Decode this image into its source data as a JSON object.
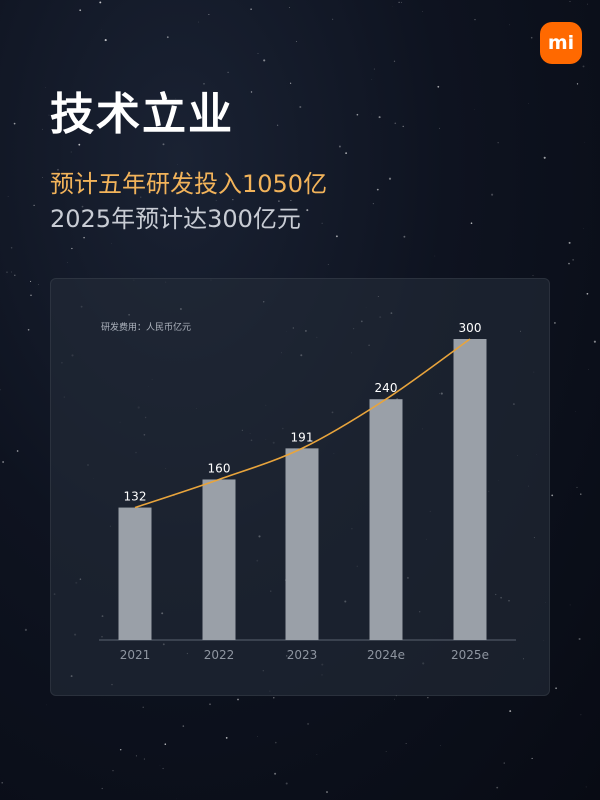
{
  "logo": {
    "text": "mi",
    "color": "#ff6900"
  },
  "header": {
    "title": "技术立业",
    "subtitle_primary": "预计五年研发投入1050亿",
    "subtitle_secondary": "2025年预计达300亿元"
  },
  "colors": {
    "bar": "#9aa0a8",
    "line": "#e8a43c",
    "accent_text": "#f2b35a",
    "card_bg": "#242c38"
  },
  "chart_data": {
    "type": "bar",
    "unit_label": "研发费用：人民币亿元",
    "categories": [
      "2021",
      "2022",
      "2023",
      "2024e",
      "2025e"
    ],
    "values": [
      132,
      160,
      191,
      240,
      300
    ],
    "data_labels": [
      "132",
      "160",
      "191",
      "240",
      "300"
    ],
    "trend_line": true,
    "ylim": [
      0,
      300
    ],
    "grid": false,
    "legend": "none"
  }
}
